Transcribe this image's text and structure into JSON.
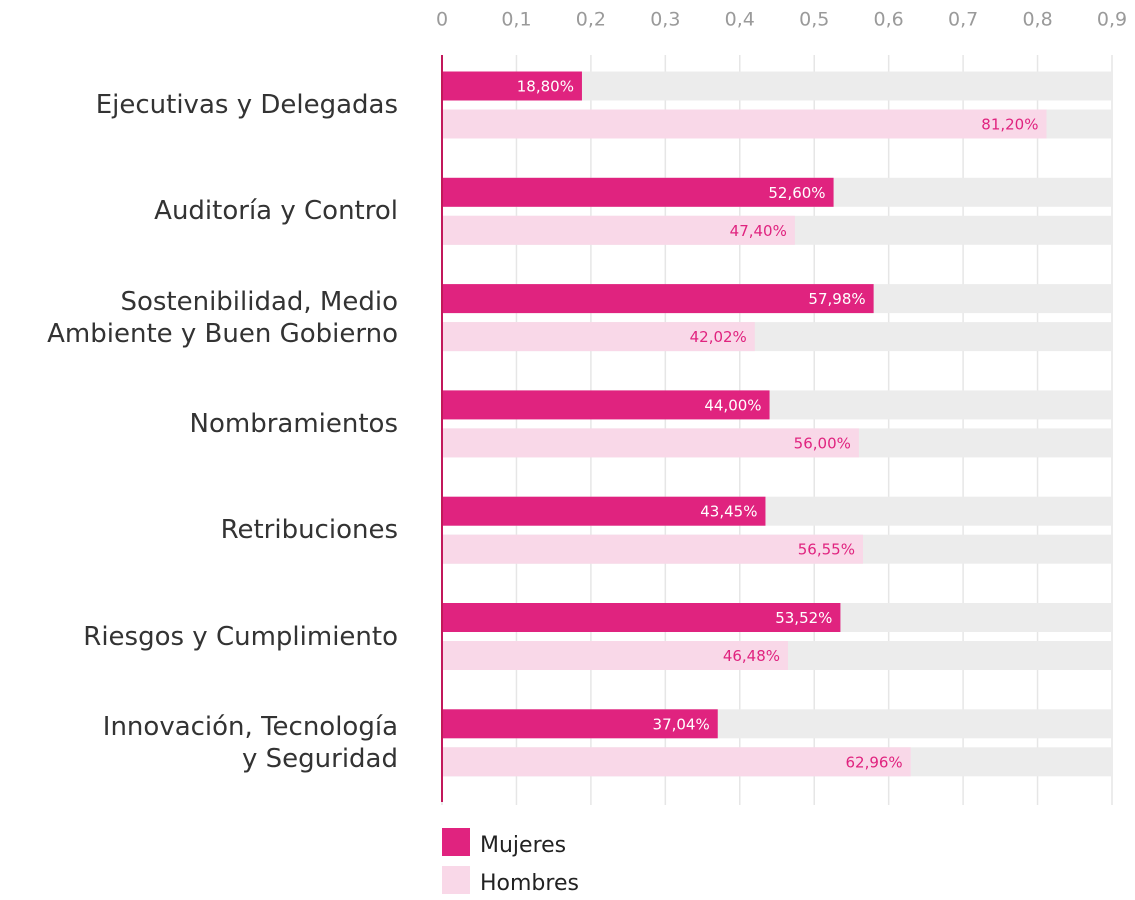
{
  "chart_data": {
    "type": "bar",
    "orientation": "horizontal",
    "categories": [
      "Ejecutivas y Delegadas",
      "Auditoría y Control",
      "Sostenibilidad, Medio\nAmbiente y Buen Gobierno",
      "Nombramientos",
      "Retribuciones",
      "Riesgos y Cumplimiento",
      "Innovación, Tecnología\ny Seguridad"
    ],
    "series": [
      {
        "name": "Mujeres",
        "color": "#e0237f",
        "values": [
          0.188,
          0.526,
          0.5798,
          0.44,
          0.4345,
          0.5352,
          0.3704
        ],
        "value_labels": [
          "18,80%",
          "52,60%",
          "57,98%",
          "44,00%",
          "43,45%",
          "53,52%",
          "37,04%"
        ]
      },
      {
        "name": "Hombres",
        "color": "#f9d8e8",
        "values": [
          0.812,
          0.474,
          0.4202,
          0.56,
          0.5655,
          0.4648,
          0.6296
        ],
        "value_labels": [
          "81,20%",
          "47,40%",
          "42,02%",
          "56,00%",
          "56,55%",
          "46,48%",
          "62,96%"
        ]
      }
    ],
    "xlim": [
      0,
      0.9
    ],
    "xticks": [
      0,
      {
        "value": 0.1,
        "label": "0,1"
      },
      {
        "value": 0.2,
        "label": "0,2"
      },
      {
        "value": 0.3,
        "label": "0,3"
      },
      {
        "value": 0.4,
        "label": "0,4"
      },
      {
        "value": 0.5,
        "label": "0,5"
      },
      {
        "value": 0.6,
        "label": "0,6"
      },
      {
        "value": 0.7,
        "label": "0,7"
      },
      {
        "value": 0.8,
        "label": "0,8"
      },
      {
        "value": 0.9,
        "label": "0,9"
      }
    ],
    "grid": true,
    "legend": "bottom"
  }
}
